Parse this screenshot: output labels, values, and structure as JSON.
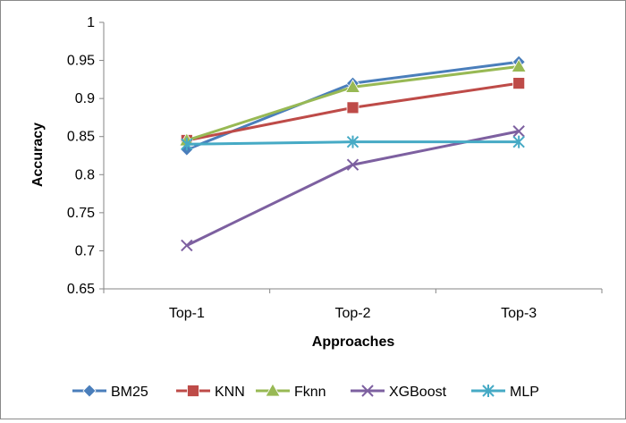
{
  "chart_data": {
    "type": "line",
    "title": "",
    "xlabel": "Approaches",
    "ylabel": "Accuracy",
    "categories": [
      "Top-1",
      "Top-2",
      "Top-3"
    ],
    "ylim": [
      0.65,
      1
    ],
    "yticks": [
      0.65,
      0.7,
      0.75,
      0.8,
      0.85,
      0.9,
      0.95,
      1
    ],
    "ytick_labels": [
      "0.65",
      "0.7",
      "0.75",
      "0.8",
      "0.85",
      "0.9",
      "0.95",
      "1"
    ],
    "grid": false,
    "legend_position": "bottom",
    "series": [
      {
        "name": "BM25",
        "values": [
          0.833,
          0.92,
          0.948
        ],
        "color": "#4a7ebb",
        "marker": "diamond"
      },
      {
        "name": "KNN",
        "values": [
          0.845,
          0.888,
          0.92
        ],
        "color": "#be4b48",
        "marker": "square"
      },
      {
        "name": "Fknn",
        "values": [
          0.845,
          0.915,
          0.942
        ],
        "color": "#98b954",
        "marker": "triangle"
      },
      {
        "name": "XGBoost",
        "values": [
          0.707,
          0.813,
          0.857
        ],
        "color": "#7d60a0",
        "marker": "x"
      },
      {
        "name": "MLP",
        "values": [
          0.84,
          0.843,
          0.843
        ],
        "color": "#46aac5",
        "marker": "star"
      }
    ]
  }
}
